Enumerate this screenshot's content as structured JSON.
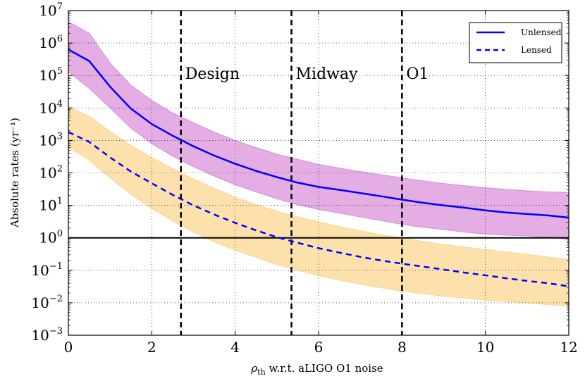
{
  "chart_data": {
    "type": "line",
    "title": "",
    "xlabel": {
      "symbol": "ρ",
      "subscript": "th",
      "rest": " w.r.t. aLIGO O1 noise"
    },
    "ylabel": "Absolute rates (yr⁻¹)",
    "xlim": [
      0,
      12
    ],
    "ylim_log10": [
      -3,
      7
    ],
    "x_ticks": [
      0,
      2,
      4,
      6,
      8,
      10,
      12
    ],
    "y_ticks_exp": [
      -3,
      -2,
      -1,
      0,
      1,
      2,
      3,
      4,
      5,
      6,
      7
    ],
    "y_tick_base": "10",
    "grid": true,
    "legend": {
      "placement": "top-right",
      "entries": [
        "Unlensed",
        "Lensed"
      ]
    },
    "reference_line_y": 1,
    "vlines": [
      {
        "x": 2.7,
        "label": "Design"
      },
      {
        "x": 5.35,
        "label": "Midway"
      },
      {
        "x": 8.0,
        "label": "O1"
      }
    ],
    "x": [
      0,
      0.5,
      1,
      1.5,
      2,
      2.5,
      3,
      3.5,
      4,
      4.5,
      5,
      5.5,
      6,
      6.5,
      7,
      7.5,
      8,
      8.5,
      9,
      9.5,
      10,
      10.5,
      11,
      11.5,
      12
    ],
    "series": [
      {
        "name": "Unlensed",
        "style": "solid",
        "color": "#0000ff",
        "band_color": "#d98ad9",
        "values": [
          630000,
          280000,
          45000,
          9500,
          3200,
          1400,
          660,
          340,
          190,
          115,
          74,
          50,
          37,
          30,
          24,
          19,
          15,
          12,
          10,
          8.5,
          7,
          6,
          5.4,
          4.9,
          4.2
        ],
        "band_upper": [
          4500000,
          2000000,
          240000,
          50000,
          17000,
          7000,
          3500,
          1800,
          1000,
          600,
          380,
          260,
          185,
          140,
          110,
          88,
          70,
          57,
          47,
          40,
          35,
          31,
          28,
          26,
          25
        ],
        "band_lower": [
          130000,
          40000,
          10000,
          2400,
          800,
          330,
          155,
          80,
          43,
          26,
          16,
          10.5,
          7.5,
          5.8,
          4.4,
          3.4,
          2.6,
          2.1,
          1.8,
          1.5,
          1.3,
          1.2,
          1.15,
          1.05,
          0.9
        ]
      },
      {
        "name": "Lensed",
        "style": "dashed",
        "color": "#0000ff",
        "band_color": "#fcd48a",
        "values": [
          1800,
          900,
          300,
          110,
          48,
          21,
          10,
          5.2,
          2.9,
          1.7,
          1.05,
          0.7,
          0.48,
          0.35,
          0.26,
          0.2,
          0.16,
          0.13,
          0.105,
          0.085,
          0.07,
          0.057,
          0.047,
          0.04,
          0.032
        ],
        "band_upper": [
          11000,
          5500,
          1900,
          700,
          300,
          135,
          65,
          33,
          18,
          10.5,
          6.6,
          4.4,
          3.1,
          2.2,
          1.65,
          1.25,
          0.98,
          0.78,
          0.63,
          0.52,
          0.44,
          0.37,
          0.31,
          0.26,
          0.21
        ],
        "band_lower": [
          600,
          250,
          70,
          22,
          8,
          3.3,
          1.5,
          0.75,
          0.42,
          0.25,
          0.15,
          0.1,
          0.068,
          0.05,
          0.037,
          0.029,
          0.023,
          0.019,
          0.016,
          0.014,
          0.012,
          0.011,
          0.0098,
          0.0088,
          0.008
        ]
      }
    ]
  }
}
